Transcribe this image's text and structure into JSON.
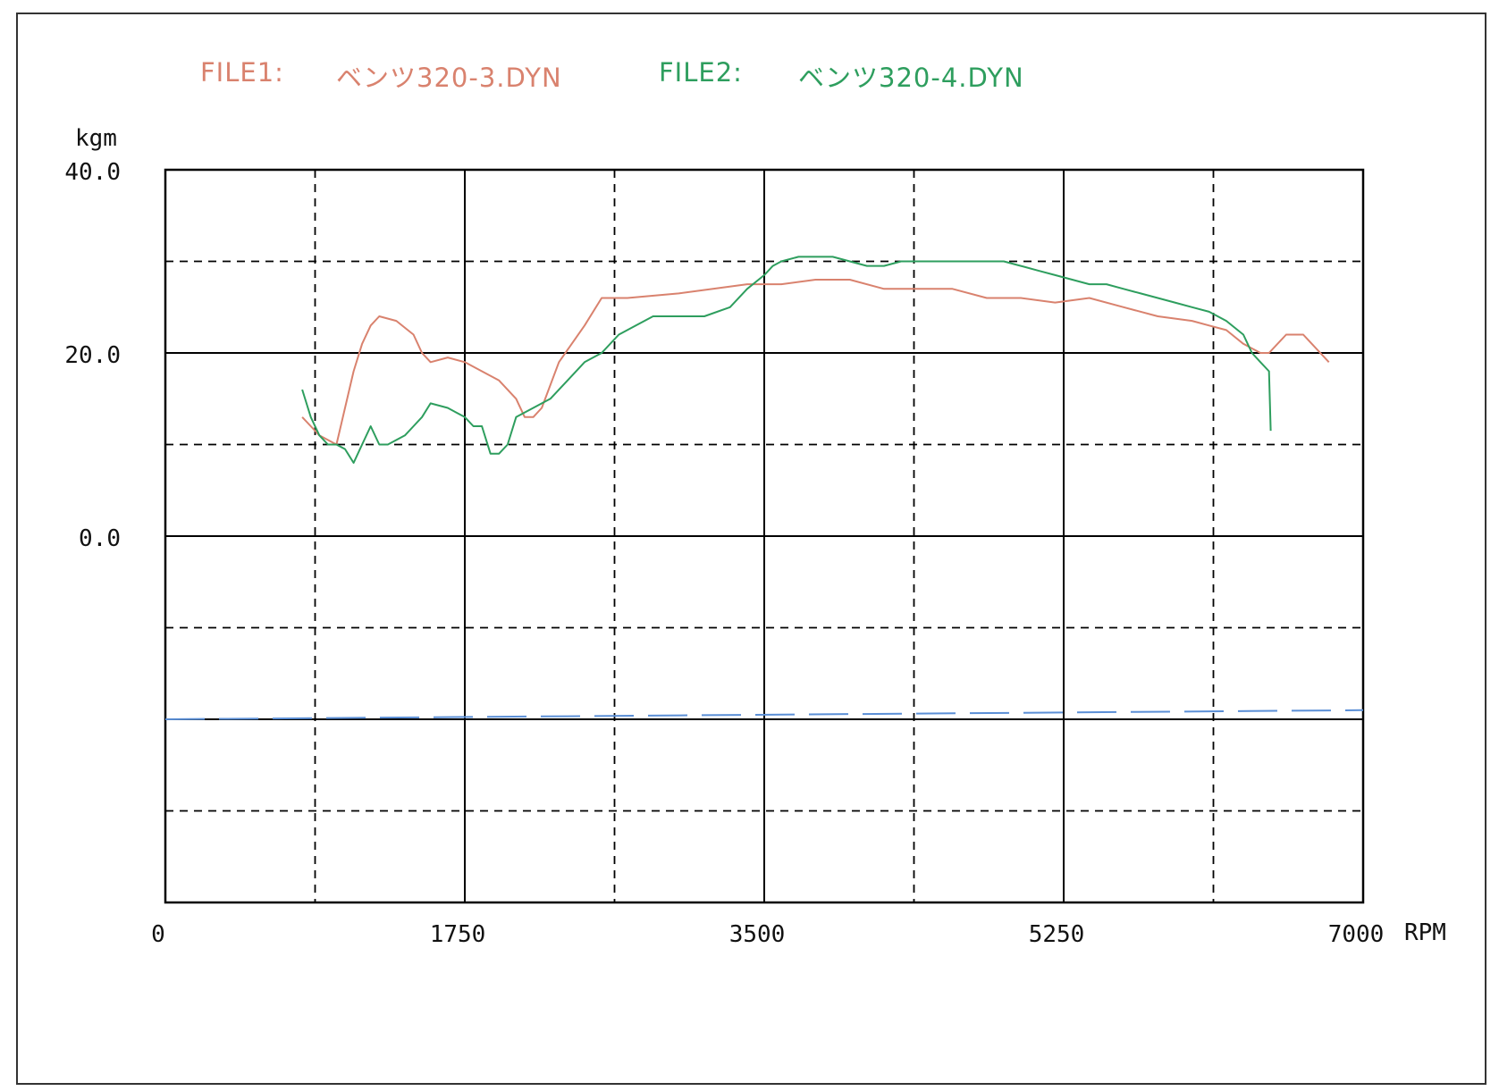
{
  "legend": [
    {
      "label": "FILE1:",
      "file": "ベンツ320-3.DYN",
      "color": "#d9826e"
    },
    {
      "label": "FILE2:",
      "file": "ベンツ320-4.DYN",
      "color": "#2e9e5e"
    }
  ],
  "chart_data": {
    "type": "line",
    "ylabel": "kgm",
    "xlabel": "RPM",
    "xlim": [
      0,
      7000
    ],
    "ylim": [
      -40,
      40
    ],
    "x_ticks": [
      "0",
      "1750",
      "3500",
      "5250",
      "7000"
    ],
    "y_ticks": [
      "40.0",
      "20.0",
      "0.0"
    ],
    "grid": true,
    "legend_position": "top",
    "series": [
      {
        "name": "ベンツ320-3.DYN",
        "color": "#d9826e",
        "points": [
          [
            800,
            13
          ],
          [
            850,
            12
          ],
          [
            900,
            11
          ],
          [
            1000,
            10
          ],
          [
            1050,
            14
          ],
          [
            1100,
            18
          ],
          [
            1150,
            21
          ],
          [
            1200,
            23
          ],
          [
            1250,
            24
          ],
          [
            1350,
            23.5
          ],
          [
            1450,
            22
          ],
          [
            1500,
            20
          ],
          [
            1550,
            19
          ],
          [
            1650,
            19.5
          ],
          [
            1750,
            19
          ],
          [
            1850,
            18
          ],
          [
            1950,
            17
          ],
          [
            2050,
            15
          ],
          [
            2100,
            13
          ],
          [
            2150,
            13
          ],
          [
            2200,
            14
          ],
          [
            2300,
            19
          ],
          [
            2450,
            23
          ],
          [
            2550,
            26
          ],
          [
            2700,
            26
          ],
          [
            3000,
            26.5
          ],
          [
            3200,
            27
          ],
          [
            3400,
            27.5
          ],
          [
            3600,
            27.5
          ],
          [
            3800,
            28
          ],
          [
            4000,
            28
          ],
          [
            4200,
            27
          ],
          [
            4400,
            27
          ],
          [
            4600,
            27
          ],
          [
            4800,
            26
          ],
          [
            5000,
            26
          ],
          [
            5200,
            25.5
          ],
          [
            5400,
            26
          ],
          [
            5600,
            25
          ],
          [
            5800,
            24
          ],
          [
            6000,
            23.5
          ],
          [
            6100,
            23
          ],
          [
            6200,
            22.5
          ],
          [
            6300,
            21
          ],
          [
            6400,
            20
          ],
          [
            6450,
            20
          ],
          [
            6550,
            22
          ],
          [
            6650,
            22
          ],
          [
            6700,
            21
          ],
          [
            6750,
            20
          ],
          [
            6800,
            19
          ]
        ]
      },
      {
        "name": "ベンツ320-4.DYN",
        "color": "#2e9e5e",
        "points": [
          [
            800,
            16
          ],
          [
            850,
            13
          ],
          [
            900,
            11
          ],
          [
            950,
            10
          ],
          [
            1000,
            10
          ],
          [
            1050,
            9.5
          ],
          [
            1100,
            8
          ],
          [
            1150,
            10
          ],
          [
            1200,
            12
          ],
          [
            1250,
            10
          ],
          [
            1300,
            10
          ],
          [
            1400,
            11
          ],
          [
            1450,
            12
          ],
          [
            1500,
            13
          ],
          [
            1550,
            14.5
          ],
          [
            1650,
            14
          ],
          [
            1750,
            13
          ],
          [
            1800,
            12
          ],
          [
            1850,
            12
          ],
          [
            1900,
            9
          ],
          [
            1950,
            9
          ],
          [
            2000,
            10
          ],
          [
            2050,
            13
          ],
          [
            2150,
            14
          ],
          [
            2250,
            15
          ],
          [
            2350,
            17
          ],
          [
            2450,
            19
          ],
          [
            2550,
            20
          ],
          [
            2650,
            22
          ],
          [
            2750,
            23
          ],
          [
            2850,
            24
          ],
          [
            3000,
            24
          ],
          [
            3150,
            24
          ],
          [
            3300,
            25
          ],
          [
            3400,
            27
          ],
          [
            3500,
            28.5
          ],
          [
            3550,
            29.5
          ],
          [
            3600,
            30
          ],
          [
            3700,
            30.5
          ],
          [
            3800,
            30.5
          ],
          [
            3900,
            30.5
          ],
          [
            4000,
            30
          ],
          [
            4100,
            29.5
          ],
          [
            4200,
            29.5
          ],
          [
            4300,
            30
          ],
          [
            4400,
            30
          ],
          [
            4500,
            30
          ],
          [
            4600,
            30
          ],
          [
            4700,
            30
          ],
          [
            4800,
            30
          ],
          [
            4900,
            30
          ],
          [
            5000,
            29.5
          ],
          [
            5100,
            29
          ],
          [
            5200,
            28.5
          ],
          [
            5300,
            28
          ],
          [
            5400,
            27.5
          ],
          [
            5500,
            27.5
          ],
          [
            5600,
            27
          ],
          [
            5700,
            26.5
          ],
          [
            5800,
            26
          ],
          [
            5900,
            25.5
          ],
          [
            6000,
            25
          ],
          [
            6100,
            24.5
          ],
          [
            6200,
            23.5
          ],
          [
            6300,
            22
          ],
          [
            6350,
            20
          ],
          [
            6400,
            19
          ],
          [
            6450,
            18
          ],
          [
            6460,
            11.5
          ]
        ]
      },
      {
        "name": "",
        "color": "#5b8fd6",
        "dashed": true,
        "points": [
          [
            0,
            -20
          ],
          [
            7000,
            -19
          ]
        ]
      }
    ]
  }
}
